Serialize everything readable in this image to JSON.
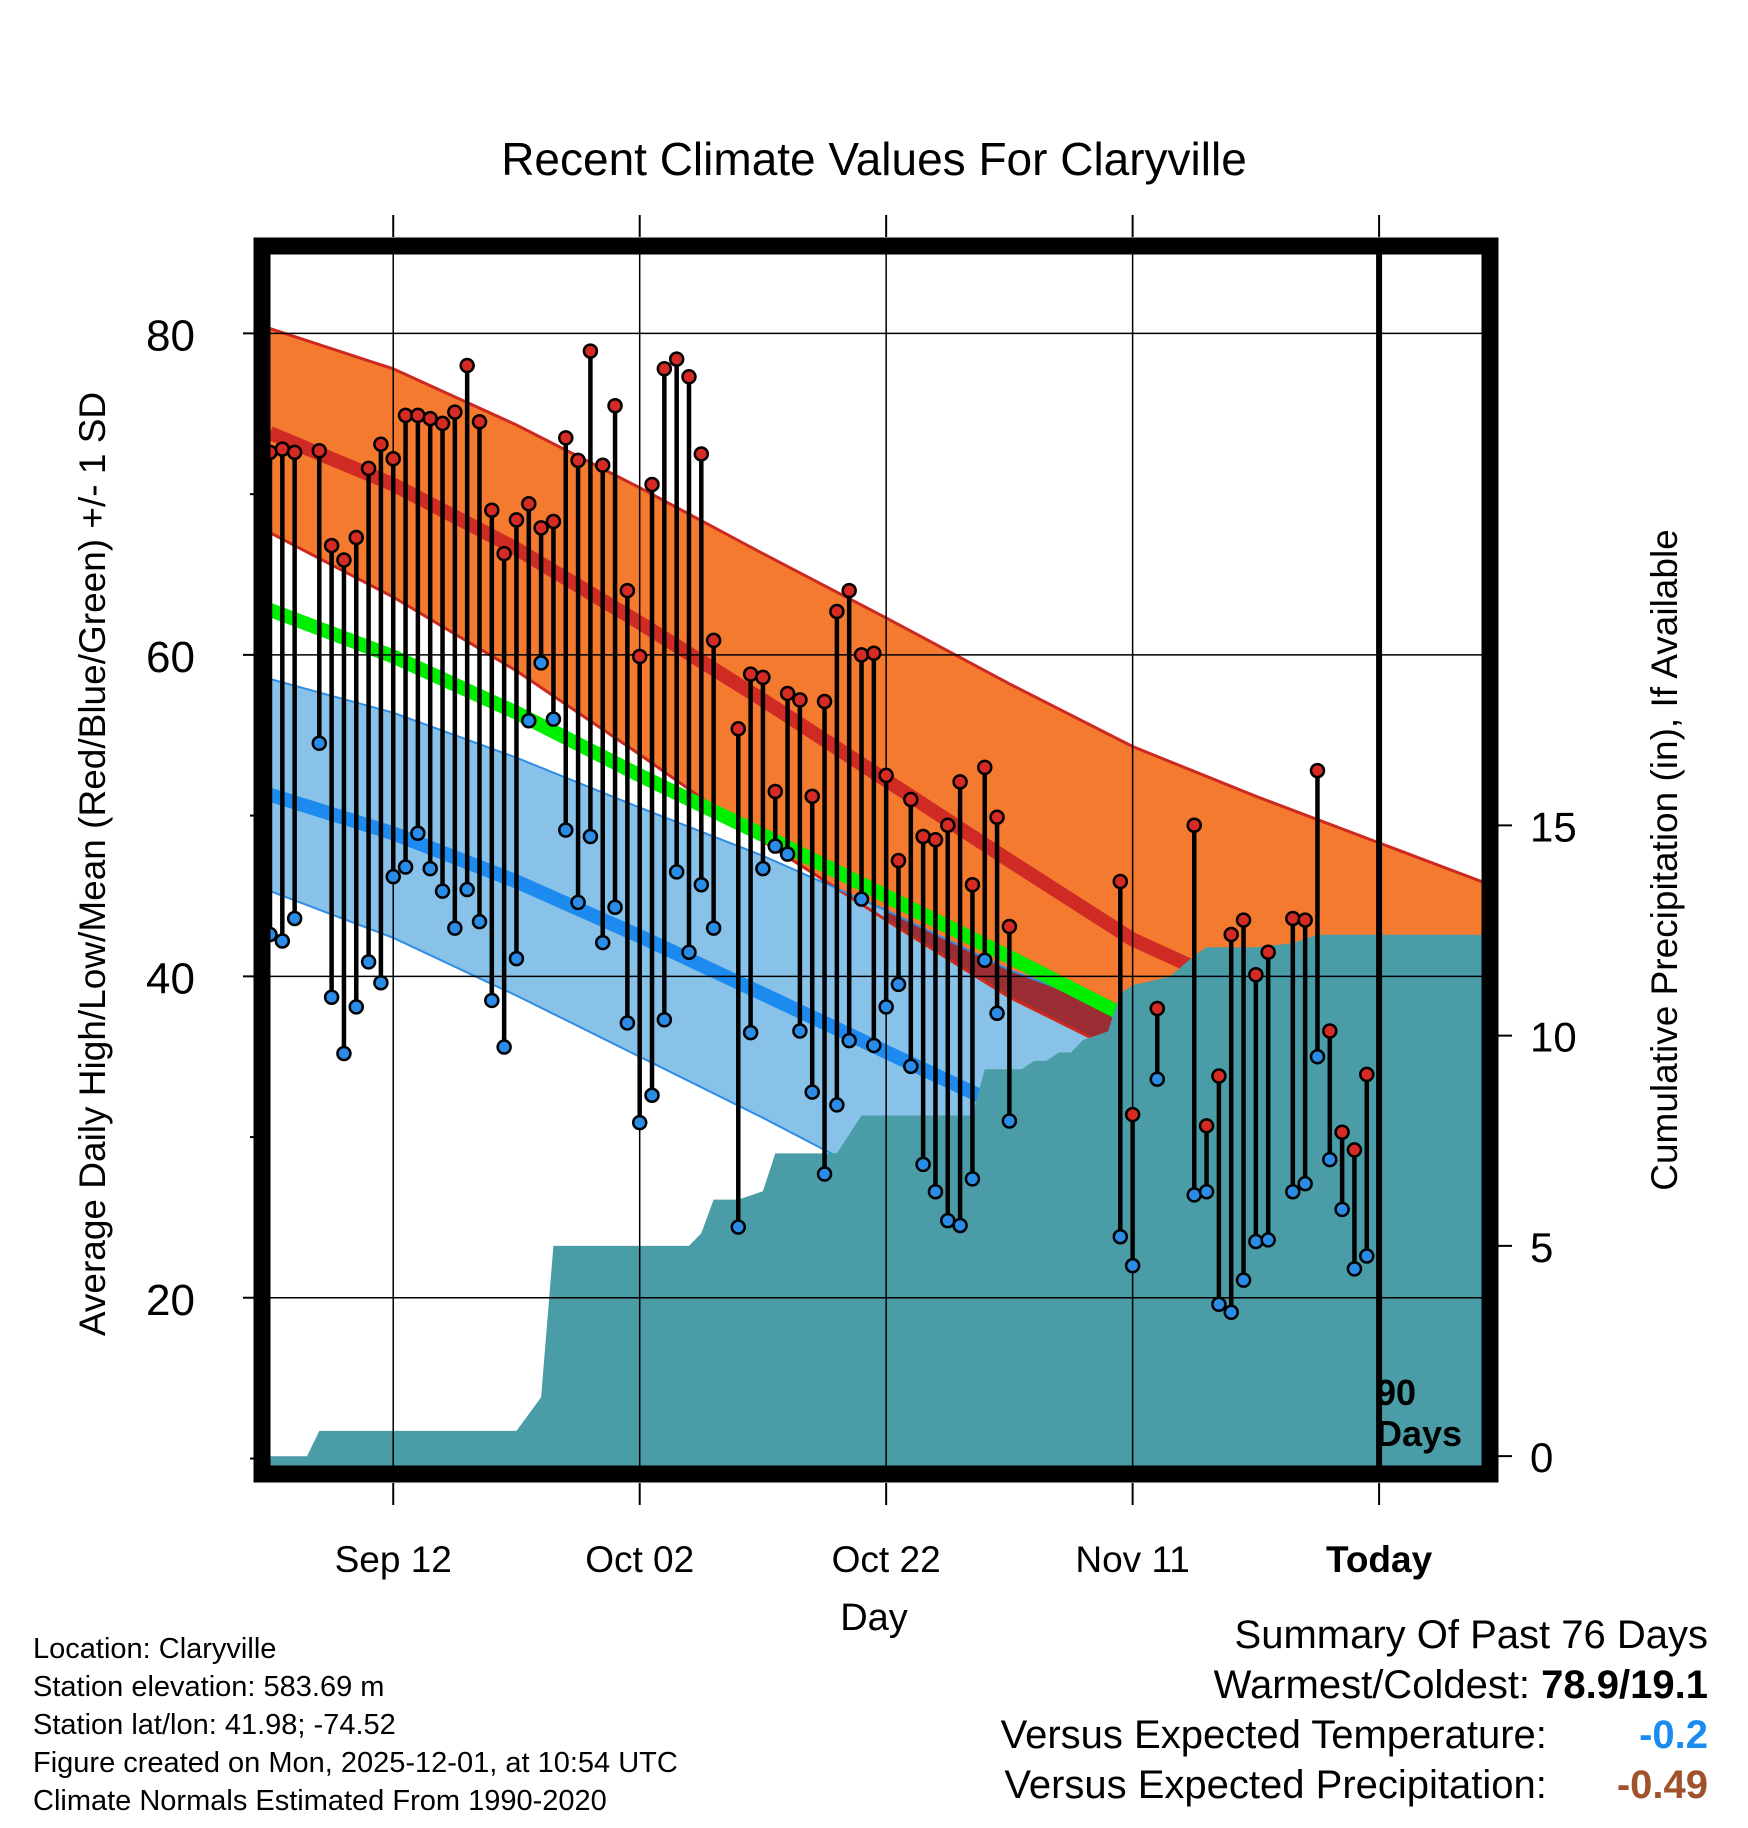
{
  "colors": {
    "high_band": "#f47a30",
    "high_band_edge": "#cc2a20",
    "high_mean": "#d02a24",
    "mean_green": "#00ee00",
    "low_band": "#88c2e8",
    "low_band_edge": "#2f8de6",
    "low_mean": "#1d8af0",
    "overlap_dark": "#9e1414",
    "precip": "#4a9ca6",
    "high_dot": "#d52b24",
    "low_dot": "#2a8ce6",
    "warmest": "#000000",
    "temp_anomaly": "#1a8cf0",
    "precip_anomaly": "#a0522d"
  },
  "chart_data": {
    "type": "climate-range",
    "title": "Recent Climate Values For Claryville",
    "xlabel": "Day",
    "ylabel": "Average Daily High/Low/Mean (Red/Blue/Green) +/- 1 SD",
    "y2label": "Cumulative Precipitation (in), If Available",
    "xlim": [
      0,
      99
    ],
    "ylim": [
      9.1,
      85.5
    ],
    "y2lim": [
      -0.4,
      28.8
    ],
    "yticks": [
      80,
      60,
      40,
      20
    ],
    "yminor": [
      70,
      50,
      30,
      10
    ],
    "y2ticks": [
      15,
      10,
      5,
      0
    ],
    "xticks": [
      {
        "day": 10,
        "label": "Sep 12"
      },
      {
        "day": 30,
        "label": "Oct 02"
      },
      {
        "day": 50,
        "label": "Oct 22"
      },
      {
        "day": 70,
        "label": "Nov 11"
      },
      {
        "day": 90,
        "label": "Today"
      }
    ],
    "today_day": 90,
    "today_label_line1": "90",
    "today_label_line2": "Days",
    "normals": {
      "days": [
        0,
        10,
        20,
        30,
        40,
        50,
        60,
        70,
        80,
        90,
        99
      ],
      "high_mean": [
        73.8,
        70.6,
        66.6,
        62.0,
        57.2,
        52.2,
        47.2,
        42.3,
        38.8,
        35.6,
        32.9
      ],
      "high_sd_upper": [
        80.3,
        77.8,
        74.3,
        70.4,
        66.3,
        62.3,
        58.2,
        54.3,
        51.2,
        48.3,
        45.7
      ],
      "high_sd_lower": [
        67.6,
        63.6,
        59.0,
        53.8,
        48.4,
        43.5,
        38.7,
        34.9,
        31.1,
        27.8,
        24.9
      ],
      "mean": [
        62.8,
        59.9,
        56.4,
        52.5,
        48.8,
        45.0,
        41.2,
        37.3,
        33.9,
        30.8,
        28.2
      ],
      "low_mean": [
        51.3,
        48.9,
        45.9,
        42.5,
        38.9,
        35.3,
        31.7,
        28.1,
        24.6,
        21.5,
        19.0
      ],
      "low_sd_upper": [
        58.5,
        56.4,
        53.6,
        50.5,
        47.5,
        44.1,
        40.4,
        37.5,
        34.9,
        32.6,
        30.4
      ],
      "low_sd_lower": [
        45.3,
        42.4,
        38.8,
        35.0,
        31.2,
        27.2,
        23.5,
        20.0,
        16.2,
        13.3,
        10.6
      ]
    },
    "highs": [
      {
        "day": 0,
        "value": 72.6
      },
      {
        "day": 1,
        "value": 72.8
      },
      {
        "day": 2,
        "value": 72.6
      },
      {
        "day": 4,
        "value": 72.7
      },
      {
        "day": 5,
        "value": 66.8
      },
      {
        "day": 6,
        "value": 65.9
      },
      {
        "day": 7,
        "value": 67.3
      },
      {
        "day": 8,
        "value": 71.6
      },
      {
        "day": 9,
        "value": 73.1
      },
      {
        "day": 10,
        "value": 72.2
      },
      {
        "day": 11,
        "value": 74.9
      },
      {
        "day": 12,
        "value": 74.9
      },
      {
        "day": 13,
        "value": 74.7
      },
      {
        "day": 14,
        "value": 74.4
      },
      {
        "day": 15,
        "value": 75.1
      },
      {
        "day": 16,
        "value": 78.0
      },
      {
        "day": 17,
        "value": 74.5
      },
      {
        "day": 18,
        "value": 69.0
      },
      {
        "day": 19,
        "value": 66.3
      },
      {
        "day": 20,
        "value": 68.4
      },
      {
        "day": 21,
        "value": 69.4
      },
      {
        "day": 22,
        "value": 67.9
      },
      {
        "day": 23,
        "value": 68.3
      },
      {
        "day": 24,
        "value": 73.5
      },
      {
        "day": 25,
        "value": 72.1
      },
      {
        "day": 26,
        "value": 78.9
      },
      {
        "day": 27,
        "value": 71.8
      },
      {
        "day": 28,
        "value": 75.5
      },
      {
        "day": 29,
        "value": 64.0
      },
      {
        "day": 30,
        "value": 59.9
      },
      {
        "day": 31,
        "value": 70.6
      },
      {
        "day": 32,
        "value": 77.8
      },
      {
        "day": 33,
        "value": 78.4
      },
      {
        "day": 34,
        "value": 77.3
      },
      {
        "day": 35,
        "value": 72.5
      },
      {
        "day": 36,
        "value": 60.9
      },
      {
        "day": 38,
        "value": 55.4
      },
      {
        "day": 39,
        "value": 58.8
      },
      {
        "day": 40,
        "value": 58.6
      },
      {
        "day": 41,
        "value": 51.5
      },
      {
        "day": 42,
        "value": 57.6
      },
      {
        "day": 43,
        "value": 57.2
      },
      {
        "day": 44,
        "value": 51.2
      },
      {
        "day": 45,
        "value": 57.1
      },
      {
        "day": 46,
        "value": 62.7
      },
      {
        "day": 47,
        "value": 64.0
      },
      {
        "day": 48,
        "value": 60.0
      },
      {
        "day": 49,
        "value": 60.1
      },
      {
        "day": 50,
        "value": 52.5
      },
      {
        "day": 51,
        "value": 47.2
      },
      {
        "day": 52,
        "value": 51.0
      },
      {
        "day": 53,
        "value": 48.7
      },
      {
        "day": 54,
        "value": 48.5
      },
      {
        "day": 55,
        "value": 49.4
      },
      {
        "day": 56,
        "value": 52.1
      },
      {
        "day": 57,
        "value": 45.7
      },
      {
        "day": 58,
        "value": 53.0
      },
      {
        "day": 59,
        "value": 49.9
      },
      {
        "day": 60,
        "value": 43.1
      },
      {
        "day": 69,
        "value": 45.9
      },
      {
        "day": 70,
        "value": 31.4
      },
      {
        "day": 72,
        "value": 38.0
      },
      {
        "day": 75,
        "value": 49.4
      },
      {
        "day": 76,
        "value": 30.7
      },
      {
        "day": 77,
        "value": 33.8
      },
      {
        "day": 78,
        "value": 42.6
      },
      {
        "day": 79,
        "value": 43.5
      },
      {
        "day": 80,
        "value": 40.1
      },
      {
        "day": 81,
        "value": 41.5
      },
      {
        "day": 83,
        "value": 43.6
      },
      {
        "day": 84,
        "value": 43.5
      },
      {
        "day": 85,
        "value": 52.8
      },
      {
        "day": 86,
        "value": 36.6
      },
      {
        "day": 87,
        "value": 30.3
      },
      {
        "day": 88,
        "value": 29.2
      },
      {
        "day": 89,
        "value": 33.9
      }
    ],
    "lows": [
      {
        "day": 0,
        "value": 42.6
      },
      {
        "day": 1,
        "value": 42.2
      },
      {
        "day": 2,
        "value": 43.6
      },
      {
        "day": 4,
        "value": 54.5
      },
      {
        "day": 5,
        "value": 38.7
      },
      {
        "day": 6,
        "value": 35.2
      },
      {
        "day": 7,
        "value": 38.1
      },
      {
        "day": 8,
        "value": 40.9
      },
      {
        "day": 9,
        "value": 39.6
      },
      {
        "day": 10,
        "value": 46.2
      },
      {
        "day": 11,
        "value": 46.8
      },
      {
        "day": 12,
        "value": 48.9
      },
      {
        "day": 13,
        "value": 46.7
      },
      {
        "day": 14,
        "value": 45.3
      },
      {
        "day": 15,
        "value": 43.0
      },
      {
        "day": 16,
        "value": 45.4
      },
      {
        "day": 17,
        "value": 43.4
      },
      {
        "day": 18,
        "value": 38.5
      },
      {
        "day": 19,
        "value": 35.6
      },
      {
        "day": 20,
        "value": 41.1
      },
      {
        "day": 21,
        "value": 55.9
      },
      {
        "day": 22,
        "value": 59.5
      },
      {
        "day": 23,
        "value": 56.0
      },
      {
        "day": 24,
        "value": 49.1
      },
      {
        "day": 25,
        "value": 44.6
      },
      {
        "day": 26,
        "value": 48.7
      },
      {
        "day": 27,
        "value": 42.1
      },
      {
        "day": 28,
        "value": 44.3
      },
      {
        "day": 29,
        "value": 37.1
      },
      {
        "day": 30,
        "value": 30.9
      },
      {
        "day": 31,
        "value": 32.6
      },
      {
        "day": 32,
        "value": 37.3
      },
      {
        "day": 33,
        "value": 46.5
      },
      {
        "day": 34,
        "value": 41.5
      },
      {
        "day": 35,
        "value": 45.7
      },
      {
        "day": 36,
        "value": 43.0
      },
      {
        "day": 38,
        "value": 24.4
      },
      {
        "day": 39,
        "value": 36.5
      },
      {
        "day": 40,
        "value": 46.7
      },
      {
        "day": 41,
        "value": 48.1
      },
      {
        "day": 42,
        "value": 47.6
      },
      {
        "day": 43,
        "value": 36.6
      },
      {
        "day": 44,
        "value": 32.8
      },
      {
        "day": 45,
        "value": 27.7
      },
      {
        "day": 46,
        "value": 32.0
      },
      {
        "day": 47,
        "value": 36.0
      },
      {
        "day": 48,
        "value": 44.8
      },
      {
        "day": 49,
        "value": 35.7
      },
      {
        "day": 50,
        "value": 38.1
      },
      {
        "day": 51,
        "value": 39.5
      },
      {
        "day": 52,
        "value": 34.4
      },
      {
        "day": 53,
        "value": 28.3
      },
      {
        "day": 54,
        "value": 26.6
      },
      {
        "day": 55,
        "value": 24.8
      },
      {
        "day": 56,
        "value": 24.5
      },
      {
        "day": 57,
        "value": 27.4
      },
      {
        "day": 58,
        "value": 41.0
      },
      {
        "day": 59,
        "value": 37.7
      },
      {
        "day": 60,
        "value": 31.0
      },
      {
        "day": 69,
        "value": 23.8
      },
      {
        "day": 70,
        "value": 22.0
      },
      {
        "day": 72,
        "value": 33.6
      },
      {
        "day": 75,
        "value": 26.4
      },
      {
        "day": 76,
        "value": 26.6
      },
      {
        "day": 77,
        "value": 19.6
      },
      {
        "day": 78,
        "value": 19.1
      },
      {
        "day": 79,
        "value": 21.1
      },
      {
        "day": 80,
        "value": 23.5
      },
      {
        "day": 81,
        "value": 23.6
      },
      {
        "day": 83,
        "value": 26.6
      },
      {
        "day": 84,
        "value": 27.1
      },
      {
        "day": 85,
        "value": 35.0
      },
      {
        "day": 86,
        "value": 28.6
      },
      {
        "day": 87,
        "value": 25.5
      },
      {
        "day": 88,
        "value": 21.8
      },
      {
        "day": 89,
        "value": 22.6
      }
    ],
    "precip_cumulative": [
      {
        "day": 0,
        "value": 0.0
      },
      {
        "day": 3,
        "value": 0.0
      },
      {
        "day": 4,
        "value": 0.6
      },
      {
        "day": 20,
        "value": 0.6
      },
      {
        "day": 21,
        "value": 1.0
      },
      {
        "day": 22,
        "value": 1.4
      },
      {
        "day": 23,
        "value": 5.0
      },
      {
        "day": 34,
        "value": 5.0
      },
      {
        "day": 35,
        "value": 5.3
      },
      {
        "day": 36,
        "value": 6.1
      },
      {
        "day": 38,
        "value": 6.1
      },
      {
        "day": 40,
        "value": 6.3
      },
      {
        "day": 41,
        "value": 7.2
      },
      {
        "day": 46,
        "value": 7.2
      },
      {
        "day": 48,
        "value": 8.1
      },
      {
        "day": 57,
        "value": 8.1
      },
      {
        "day": 58,
        "value": 9.2
      },
      {
        "day": 61,
        "value": 9.2
      },
      {
        "day": 62,
        "value": 9.4
      },
      {
        "day": 63,
        "value": 9.4
      },
      {
        "day": 64,
        "value": 9.6
      },
      {
        "day": 65,
        "value": 9.6
      },
      {
        "day": 66,
        "value": 9.9
      },
      {
        "day": 67,
        "value": 10.0
      },
      {
        "day": 68,
        "value": 10.1
      },
      {
        "day": 69,
        "value": 11.0
      },
      {
        "day": 70,
        "value": 11.2
      },
      {
        "day": 73,
        "value": 11.4
      },
      {
        "day": 75,
        "value": 11.9
      },
      {
        "day": 76,
        "value": 12.1
      },
      {
        "day": 80,
        "value": 12.1
      },
      {
        "day": 83,
        "value": 12.2
      },
      {
        "day": 85,
        "value": 12.4
      },
      {
        "day": 99,
        "value": 12.4
      }
    ]
  },
  "info": {
    "location": "Location: Claryville",
    "elevation": "Station elevation: 583.69 m",
    "latlon": "Station lat/lon: 41.98; -74.52",
    "created": "Figure created on Mon, 2025-12-01, at 10:54 UTC",
    "normals": "Climate Normals Estimated From 1990-2020"
  },
  "summary": {
    "title": "Summary Of Past 76 Days",
    "warmest_label": "Warmest/Coldest:",
    "warmest_value": "78.9/19.1",
    "temp_label": "Versus Expected Temperature:",
    "temp_value": "-0.2",
    "precip_label": "Versus Expected Precipitation:",
    "precip_value": "-0.49"
  }
}
